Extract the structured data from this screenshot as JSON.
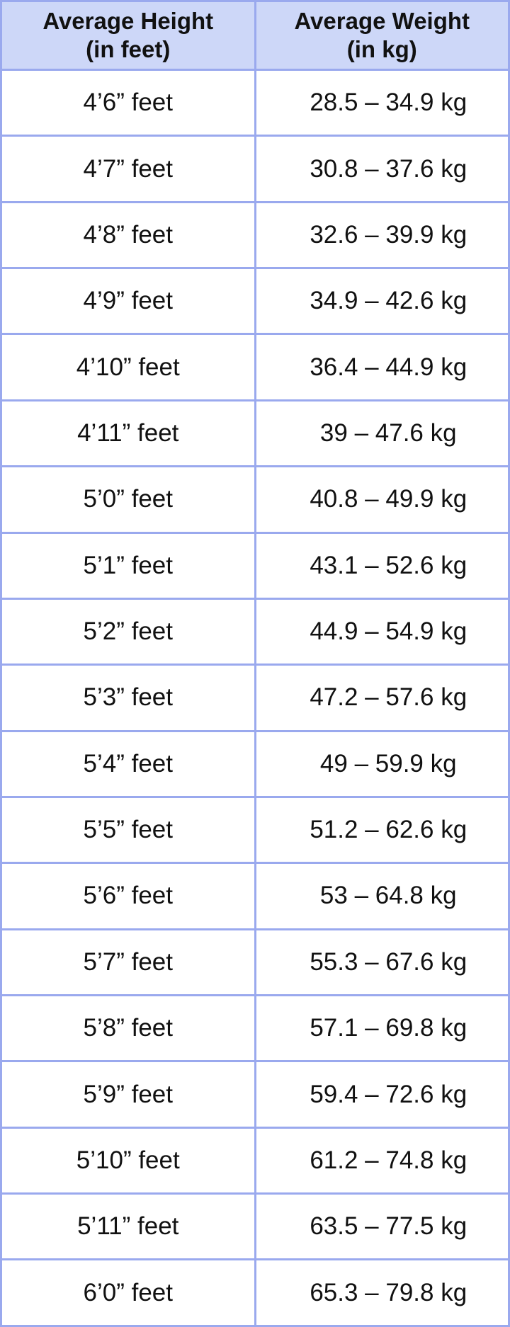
{
  "table": {
    "header_fill_color": "#cdd7f8",
    "border_color": "#9aa9ee",
    "columns": [
      {
        "line1": "Average Height",
        "line2": "(in feet)"
      },
      {
        "line1": "Average Weight",
        "line2": "(in kg)"
      }
    ],
    "rows": [
      {
        "height": "4’6” feet",
        "weight": "28.5 – 34.9 kg"
      },
      {
        "height": "4’7” feet",
        "weight": "30.8 – 37.6 kg"
      },
      {
        "height": "4’8” feet",
        "weight": "32.6 – 39.9 kg"
      },
      {
        "height": "4’9” feet",
        "weight": "34.9 – 42.6 kg"
      },
      {
        "height": "4’10” feet",
        "weight": "36.4 – 44.9 kg"
      },
      {
        "height": "4’11” feet",
        "weight": "39 – 47.6 kg"
      },
      {
        "height": "5’0” feet",
        "weight": "40.8 – 49.9 kg"
      },
      {
        "height": "5’1” feet",
        "weight": "43.1 – 52.6 kg"
      },
      {
        "height": "5’2” feet",
        "weight": "44.9 – 54.9 kg"
      },
      {
        "height": "5’3” feet",
        "weight": "47.2 – 57.6 kg"
      },
      {
        "height": "5’4” feet",
        "weight": "49 – 59.9 kg"
      },
      {
        "height": "5’5” feet",
        "weight": "51.2 – 62.6 kg"
      },
      {
        "height": "5’6” feet",
        "weight": "53 – 64.8 kg"
      },
      {
        "height": "5’7” feet",
        "weight": "55.3 – 67.6 kg"
      },
      {
        "height": "5’8” feet",
        "weight": "57.1 – 69.8 kg"
      },
      {
        "height": "5’9” feet",
        "weight": "59.4 – 72.6 kg"
      },
      {
        "height": "5’10” feet",
        "weight": "61.2 – 74.8 kg"
      },
      {
        "height": "5’11” feet",
        "weight": "63.5 – 77.5 kg"
      },
      {
        "height": "6’0” feet",
        "weight": "65.3 – 79.8 kg"
      }
    ]
  }
}
